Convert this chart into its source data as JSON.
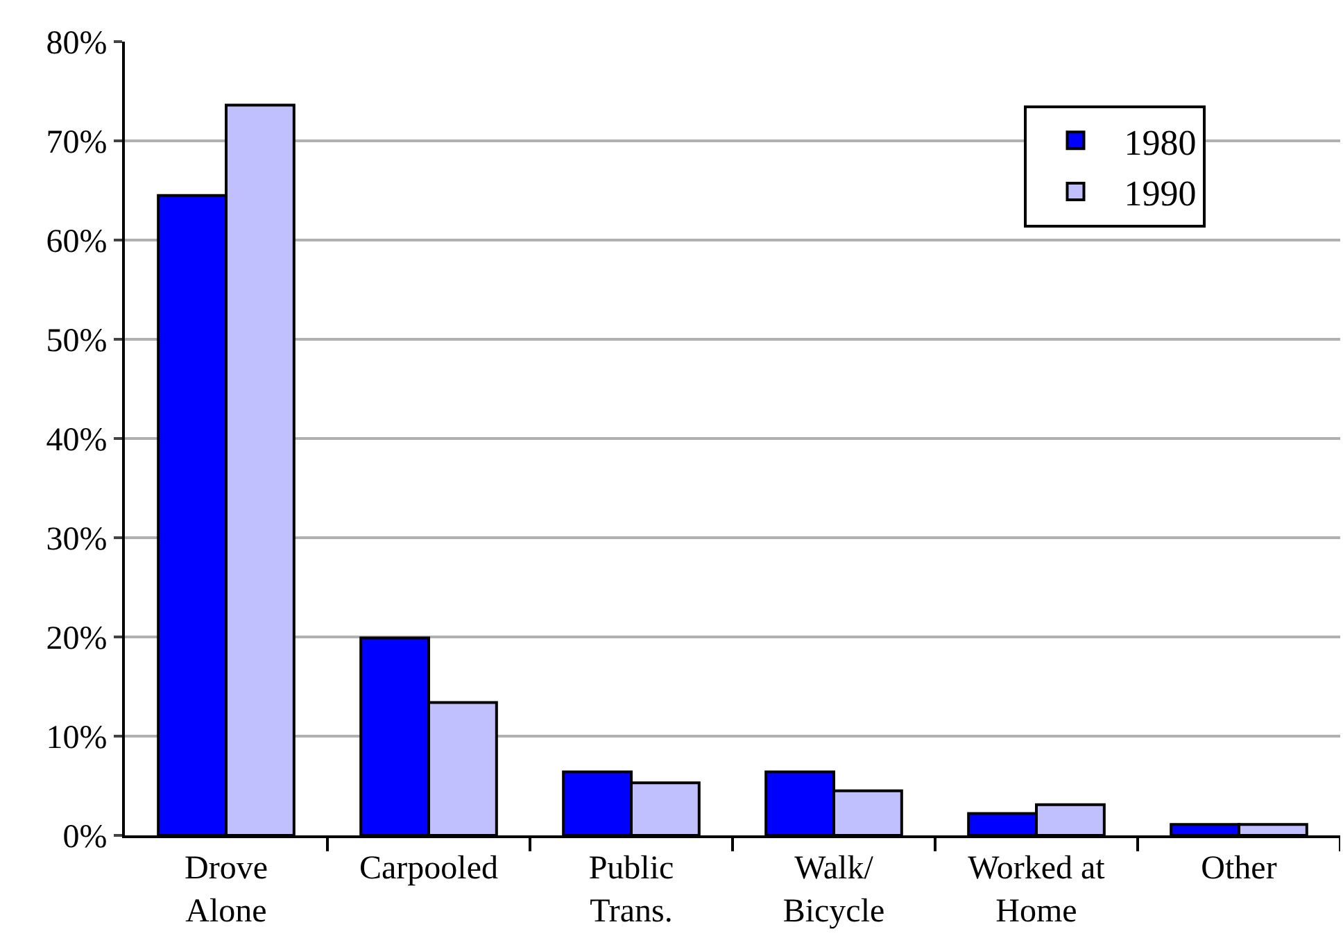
{
  "chart_data": {
    "type": "bar",
    "categories": [
      "Drove\nAlone",
      "Carpooled",
      "Public\nTrans.",
      "Walk/\nBicycle",
      "Worked at\nHome",
      "Other"
    ],
    "series": [
      {
        "name": "1980",
        "color": "#0000ff",
        "values": [
          64.5,
          19.9,
          6.4,
          6.4,
          2.2,
          1.1
        ]
      },
      {
        "name": "1990",
        "color": "#c0c0ff",
        "values": [
          73.6,
          13.4,
          5.3,
          4.5,
          3.1,
          1.1
        ]
      }
    ],
    "ylim": [
      0,
      80
    ],
    "yticks": [
      {
        "value": 0,
        "label": "0%"
      },
      {
        "value": 10,
        "label": "10%"
      },
      {
        "value": 20,
        "label": "20%"
      },
      {
        "value": 30,
        "label": "30%"
      },
      {
        "value": 40,
        "label": "40%"
      },
      {
        "value": 50,
        "label": "50%"
      },
      {
        "value": 60,
        "label": "60%"
      },
      {
        "value": 70,
        "label": "70%"
      },
      {
        "value": 80,
        "label": "80%"
      }
    ],
    "grid": "y",
    "legend": "top right"
  }
}
